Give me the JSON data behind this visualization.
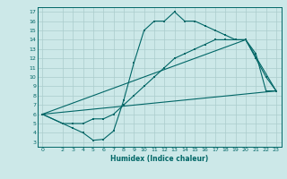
{
  "xlabel": "Humidex (Indice chaleur)",
  "bg_color": "#cce8e8",
  "grid_color": "#aacccc",
  "line_color": "#006666",
  "xlim": [
    -0.5,
    23.5
  ],
  "ylim": [
    2.5,
    17.5
  ],
  "xticks": [
    0,
    2,
    3,
    4,
    5,
    6,
    7,
    8,
    9,
    10,
    11,
    12,
    13,
    14,
    15,
    16,
    17,
    18,
    19,
    20,
    21,
    22,
    23
  ],
  "yticks": [
    3,
    4,
    5,
    6,
    7,
    8,
    9,
    10,
    11,
    12,
    13,
    14,
    15,
    16,
    17
  ],
  "line1_x": [
    0,
    2,
    3,
    4,
    5,
    6,
    7,
    8,
    9,
    10,
    11,
    12,
    13,
    14,
    15,
    16,
    17,
    18,
    19,
    20,
    21,
    22,
    23
  ],
  "line1_y": [
    6,
    5,
    4.5,
    4,
    3.2,
    3.3,
    4.2,
    7.5,
    11.5,
    15,
    16,
    16,
    17,
    16,
    16,
    15.5,
    15,
    14.5,
    14,
    14,
    12,
    10,
    8.5
  ],
  "line2_x": [
    0,
    2,
    3,
    4,
    5,
    6,
    7,
    8,
    9,
    10,
    11,
    12,
    13,
    14,
    15,
    16,
    17,
    18,
    19,
    20,
    21,
    22,
    23
  ],
  "line2_y": [
    6,
    5,
    5,
    5,
    5.5,
    5.5,
    6,
    7,
    8,
    9,
    10,
    11,
    12,
    12.5,
    13,
    13.5,
    14,
    14,
    14,
    14,
    12.5,
    8.5,
    8.5
  ],
  "line3_x": [
    0,
    23
  ],
  "line3_y": [
    6,
    8.5
  ],
  "line4_x": [
    0,
    20,
    23
  ],
  "line4_y": [
    6,
    14,
    8.5
  ]
}
